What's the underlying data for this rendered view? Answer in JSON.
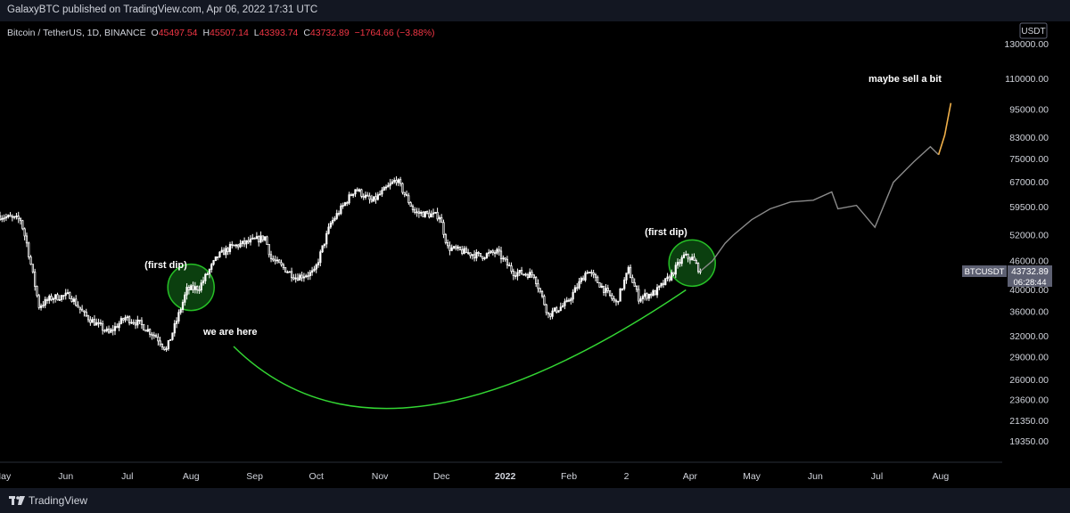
{
  "header": {
    "published": "GalaxyBTC published on TradingView.com, Apr 06, 2022 17:31 UTC"
  },
  "legend": {
    "symbol": "Bitcoin / TetherUS, 1D, BINANCE",
    "open_label": "O",
    "open": "45497.54",
    "high_label": "H",
    "high": "45507.14",
    "low_label": "L",
    "low": "43393.74",
    "close_label": "C",
    "close": "43732.89",
    "change": "−1764.66 (−3.88%)"
  },
  "price_axis": {
    "unit": "USDT",
    "ticks": [
      "130000.00",
      "110000.00",
      "95000.00",
      "83000.00",
      "75000.00",
      "67000.00",
      "59500.00",
      "52000.00",
      "46000.00",
      "40000.00",
      "36000.00",
      "32000.00",
      "29000.00",
      "26000.00",
      "23600.00",
      "21350.00",
      "19350.00"
    ]
  },
  "price_tag": {
    "symbol": "BTCUSDT",
    "price": "43732.89",
    "countdown": "06:28:44"
  },
  "time_axis": {
    "ticks": [
      "May",
      "Jun",
      "Jul",
      "Aug",
      "Sep",
      "Oct",
      "Nov",
      "Dec",
      "2022",
      "Feb",
      "2",
      "Apr",
      "May",
      "Jun",
      "Jul",
      "Aug"
    ]
  },
  "annotations": {
    "first_dip_left": "(first dip)",
    "first_dip_right": "(first dip)",
    "we_are_here": "we are here",
    "maybe_sell": "maybe sell a bit"
  },
  "footer": {
    "brand": "TradingView"
  },
  "colors": {
    "background": "#000000",
    "bar_chrome": "#131722",
    "candle": "#ffffff",
    "red_text": "#f23645",
    "projection": "#8a8a8a",
    "projection_end": "#f0b04a",
    "circle": "#26c026",
    "circle_fill": "#0d4a12",
    "arc": "#33d633",
    "tag_bg": "#5d6072"
  },
  "chart_data": {
    "type": "candlestick",
    "title": "Bitcoin / TetherUS, 1D, BINANCE",
    "scale": "log",
    "ylim": [
      17500,
      145000
    ],
    "x_range": [
      "2021-04-30",
      "2022-08-31"
    ],
    "grid": false,
    "legend": "top-left",
    "price_series": {
      "name": "BTCUSDT",
      "points": [
        [
          "2021-04-30",
          57000
        ],
        [
          "2021-05-10",
          56000
        ],
        [
          "2021-05-13",
          50000
        ],
        [
          "2021-05-19",
          37000
        ],
        [
          "2021-05-25",
          38500
        ],
        [
          "2021-06-03",
          39000
        ],
        [
          "2021-06-10",
          35500
        ],
        [
          "2021-06-22",
          32500
        ],
        [
          "2021-06-30",
          35000
        ],
        [
          "2021-07-07",
          34000
        ],
        [
          "2021-07-15",
          32000
        ],
        [
          "2021-07-20",
          30000
        ],
        [
          "2021-07-25",
          34500
        ],
        [
          "2021-07-30",
          40000
        ],
        [
          "2021-08-05",
          40500
        ],
        [
          "2021-08-14",
          47000
        ],
        [
          "2021-08-20",
          49000
        ],
        [
          "2021-09-06",
          51500
        ],
        [
          "2021-09-09",
          46500
        ],
        [
          "2021-09-21",
          42500
        ],
        [
          "2021-09-30",
          43500
        ],
        [
          "2021-10-08",
          55000
        ],
        [
          "2021-10-20",
          65000
        ],
        [
          "2021-10-28",
          61000
        ],
        [
          "2021-11-09",
          68000
        ],
        [
          "2021-11-18",
          58000
        ],
        [
          "2021-11-30",
          57000
        ],
        [
          "2021-12-04",
          49000
        ],
        [
          "2021-12-20",
          47000
        ],
        [
          "2021-12-28",
          48000
        ],
        [
          "2022-01-05",
          43500
        ],
        [
          "2022-01-15",
          43000
        ],
        [
          "2022-01-22",
          35500
        ],
        [
          "2022-01-31",
          37500
        ],
        [
          "2022-02-10",
          44000
        ],
        [
          "2022-02-24",
          37500
        ],
        [
          "2022-03-02",
          44000
        ],
        [
          "2022-03-07",
          38500
        ],
        [
          "2022-03-15",
          39500
        ],
        [
          "2022-03-22",
          42500
        ],
        [
          "2022-03-29",
          47000
        ],
        [
          "2022-04-02",
          46500
        ],
        [
          "2022-04-06",
          43732.89
        ]
      ]
    },
    "projection": {
      "points": [
        [
          "2022-04-06",
          43732.89
        ],
        [
          "2022-04-12",
          46000
        ],
        [
          "2022-04-18",
          50000
        ],
        [
          "2022-04-22",
          52000
        ],
        [
          "2022-05-01",
          56000
        ],
        [
          "2022-05-10",
          59000
        ],
        [
          "2022-05-20",
          61000
        ],
        [
          "2022-05-31",
          61500
        ],
        [
          "2022-06-09",
          64000
        ],
        [
          "2022-06-12",
          59000
        ],
        [
          "2022-06-21",
          60000
        ],
        [
          "2022-06-30",
          54000
        ],
        [
          "2022-07-09",
          67000
        ],
        [
          "2022-07-19",
          74000
        ],
        [
          "2022-07-27",
          79500
        ],
        [
          "2022-07-31",
          76500
        ]
      ],
      "extension": [
        [
          "2022-07-31",
          76500
        ],
        [
          "2022-08-03",
          84000
        ],
        [
          "2022-08-06",
          98000
        ]
      ]
    },
    "annotations": [
      {
        "text": "(first dip)",
        "date": "2021-08-01",
        "price": 40500
      },
      {
        "text": "(first dip)",
        "date": "2022-04-02",
        "price": 45500
      },
      {
        "text": "we are here"
      },
      {
        "text": "maybe sell a bit",
        "date": "2022-08-03",
        "price": 98000
      }
    ]
  }
}
